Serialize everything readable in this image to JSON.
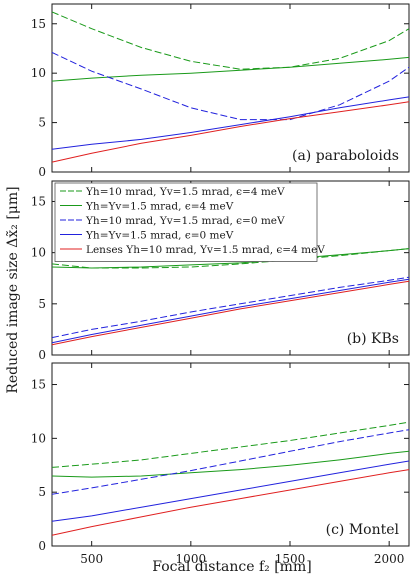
{
  "chart_data": {
    "type": "line",
    "xlabel": "Focal distance f₂ [mm]",
    "ylabel": "Reduced image size Δx̃₂ [μm]",
    "xlim": [
      300,
      2100
    ],
    "ylim": [
      0,
      17
    ],
    "xticks": [
      "500",
      "1000",
      "1500",
      "2000"
    ],
    "yticks": [
      "0",
      "5",
      "10",
      "15"
    ],
    "legend_position": "top-left of middle panel",
    "legend": [
      {
        "label": "Υh=10 mrad, Υv=1.5 mrad, ϵ=4 meV",
        "color": "#1a9a1a",
        "dash": "dashed"
      },
      {
        "label": "Υh=Υv=1.5 mrad, ϵ=4 meV",
        "color": "#1a9a1a",
        "dash": "solid"
      },
      {
        "label": "Υh=10 mrad, Υv=1.5 mrad, ϵ=0 meV",
        "color": "#2222dd",
        "dash": "dashed"
      },
      {
        "label": "Υh=Υv=1.5 mrad, ϵ=0 meV",
        "color": "#2222dd",
        "dash": "solid"
      },
      {
        "label": "Lenses Υh=10 mrad, Υv=1.5 mrad, ϵ=4 meV",
        "color": "#e02020",
        "dash": "solid"
      }
    ],
    "x": [
      300,
      500,
      750,
      1000,
      1250,
      1500,
      1750,
      2000,
      2100
    ],
    "panels": [
      {
        "label": "(a) paraboloids",
        "series": [
          {
            "legend_index": 0,
            "values": [
              16.2,
              14.5,
              12.6,
              11.2,
              10.4,
              10.6,
              11.5,
              13.3,
              14.5
            ]
          },
          {
            "legend_index": 1,
            "values": [
              9.2,
              9.5,
              9.8,
              10.0,
              10.3,
              10.6,
              11.0,
              11.4,
              11.6
            ]
          },
          {
            "legend_index": 2,
            "values": [
              12.1,
              10.2,
              8.4,
              6.5,
              5.3,
              5.3,
              6.8,
              9.2,
              10.6
            ]
          },
          {
            "legend_index": 3,
            "values": [
              2.3,
              2.8,
              3.3,
              4.0,
              4.8,
              5.6,
              6.5,
              7.3,
              7.6
            ]
          },
          {
            "legend_index": 4,
            "values": [
              1.0,
              1.9,
              2.9,
              3.7,
              4.6,
              5.4,
              6.1,
              6.8,
              7.1
            ]
          }
        ]
      },
      {
        "label": "(b) KBs",
        "series": [
          {
            "legend_index": 0,
            "values": [
              8.9,
              8.5,
              8.5,
              8.6,
              8.9,
              9.3,
              9.7,
              10.2,
              10.4
            ]
          },
          {
            "legend_index": 1,
            "values": [
              8.6,
              8.5,
              8.6,
              8.8,
              9.0,
              9.4,
              9.8,
              10.2,
              10.4
            ]
          },
          {
            "legend_index": 2,
            "values": [
              1.7,
              2.5,
              3.3,
              4.2,
              5.0,
              5.8,
              6.6,
              7.3,
              7.6
            ]
          },
          {
            "legend_index": 3,
            "values": [
              1.2,
              2.0,
              2.9,
              3.8,
              4.7,
              5.5,
              6.3,
              7.1,
              7.4
            ]
          },
          {
            "legend_index": 4,
            "values": [
              1.0,
              1.8,
              2.7,
              3.6,
              4.5,
              5.3,
              6.1,
              6.9,
              7.2
            ]
          }
        ]
      },
      {
        "label": "(c) Montel",
        "series": [
          {
            "legend_index": 0,
            "values": [
              7.3,
              7.6,
              8.0,
              8.6,
              9.2,
              9.8,
              10.5,
              11.2,
              11.5
            ]
          },
          {
            "legend_index": 1,
            "values": [
              6.5,
              6.4,
              6.5,
              6.8,
              7.1,
              7.5,
              8.0,
              8.6,
              8.8
            ]
          },
          {
            "legend_index": 2,
            "values": [
              4.8,
              5.4,
              6.2,
              7.0,
              7.9,
              8.8,
              9.7,
              10.5,
              10.8
            ]
          },
          {
            "legend_index": 3,
            "values": [
              2.3,
              2.8,
              3.6,
              4.4,
              5.2,
              6.0,
              6.8,
              7.6,
              7.9
            ]
          },
          {
            "legend_index": 4,
            "values": [
              1.0,
              1.8,
              2.7,
              3.6,
              4.4,
              5.2,
              6.0,
              6.8,
              7.1
            ]
          }
        ]
      }
    ]
  }
}
